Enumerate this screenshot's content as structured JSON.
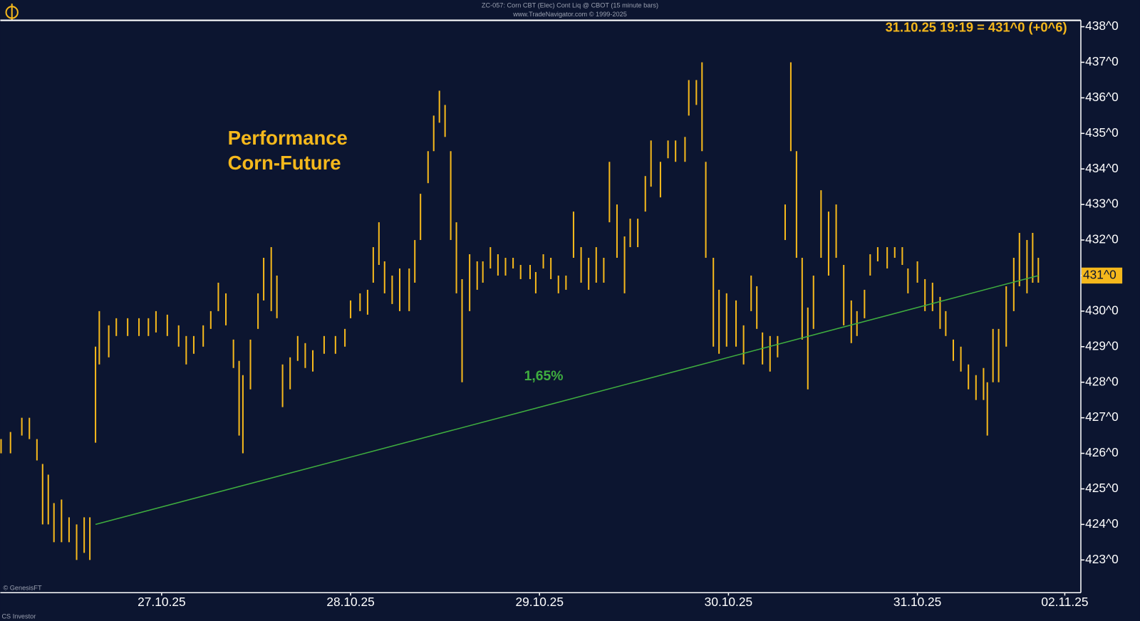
{
  "chart_data": {
    "type": "hlbar",
    "header": "ZC-057: Corn CBT (Elec) Cont Liq @ CBOT  (15 minute bars)",
    "subheader": "www.TradeNavigator.com © 1999-2025",
    "title": "Performance",
    "subtitle": "Corn-Future",
    "quote": "31.10.25 19:19 = 431^0 (+0^6)",
    "credit": "© GenesisFT",
    "footer": "CS Investor",
    "color": "#f5b81c",
    "x": [
      -0.85,
      -0.8,
      -0.74,
      -0.7,
      -0.66,
      -0.63,
      -0.6,
      -0.57,
      -0.53,
      -0.49,
      -0.45,
      -0.41,
      -0.38,
      -0.35,
      -0.33,
      -0.28,
      -0.24,
      -0.18,
      -0.12,
      -0.07,
      -0.03,
      0.03,
      0.09,
      0.13,
      0.17,
      0.22,
      0.26,
      0.3,
      0.34,
      0.38,
      0.41,
      0.43,
      0.47,
      0.51,
      0.54,
      0.58,
      0.61,
      0.64,
      0.68,
      0.72,
      0.76,
      0.8,
      0.86,
      0.92,
      0.97,
      1.0,
      1.05,
      1.09,
      1.12,
      1.15,
      1.18,
      1.22,
      1.26,
      1.31,
      1.34,
      1.37,
      1.41,
      1.44,
      1.47,
      1.5,
      1.53,
      1.56,
      1.59,
      1.63,
      1.67,
      1.7,
      1.74,
      1.78,
      1.82,
      1.86,
      1.9,
      1.95,
      1.98,
      2.02,
      2.06,
      2.1,
      2.14,
      2.18,
      2.22,
      2.26,
      2.3,
      2.34,
      2.37,
      2.41,
      2.45,
      2.48,
      2.52,
      2.56,
      2.59,
      2.64,
      2.68,
      2.72,
      2.77,
      2.79,
      2.83,
      2.86,
      2.88,
      2.92,
      2.95,
      2.99,
      3.04,
      3.08,
      3.12,
      3.15,
      3.18,
      3.22,
      3.26,
      3.3,
      3.33,
      3.36,
      3.39,
      3.42,
      3.45,
      3.49,
      3.53,
      3.57,
      3.61,
      3.65,
      3.68,
      3.72,
      3.75,
      3.79,
      3.84,
      3.88,
      3.92,
      3.95,
      4.0,
      4.04,
      4.08,
      4.12,
      4.15,
      4.19,
      4.23,
      4.27,
      4.31,
      4.35,
      4.37,
      4.4,
      4.43,
      4.47,
      4.51,
      4.54,
      4.58,
      4.61,
      4.64
    ],
    "high": [
      426.4,
      426.6,
      427.0,
      427.0,
      426.4,
      425.7,
      425.4,
      424.6,
      424.7,
      424.2,
      424.0,
      424.2,
      424.2,
      429.0,
      430.0,
      429.6,
      429.8,
      429.8,
      429.8,
      429.8,
      430.0,
      429.9,
      429.6,
      429.3,
      429.3,
      429.6,
      430.0,
      430.8,
      430.5,
      429.2,
      428.6,
      428.2,
      429.2,
      430.5,
      431.5,
      431.8,
      431.0,
      428.5,
      428.7,
      429.3,
      429.1,
      428.9,
      429.3,
      429.3,
      429.5,
      430.3,
      430.5,
      430.6,
      431.8,
      432.5,
      431.4,
      431.0,
      431.2,
      431.2,
      432.0,
      433.3,
      434.5,
      435.5,
      436.2,
      435.8,
      434.5,
      432.5,
      430.9,
      431.6,
      431.4,
      431.4,
      431.8,
      431.6,
      431.5,
      431.5,
      431.3,
      431.3,
      431.1,
      431.6,
      431.5,
      431.0,
      431.0,
      432.8,
      431.8,
      431.5,
      431.8,
      431.5,
      434.2,
      433.0,
      432.1,
      432.6,
      432.6,
      433.8,
      434.8,
      434.2,
      434.8,
      434.8,
      434.9,
      436.5,
      436.5,
      437.0,
      434.2,
      431.5,
      430.6,
      430.5,
      430.3,
      429.6,
      431.0,
      430.7,
      429.4,
      429.3,
      429.3,
      433.0,
      437.0,
      434.5,
      431.5,
      430.1,
      431.0,
      433.4,
      432.8,
      433.0,
      431.3,
      430.3,
      430.0,
      430.6,
      431.6,
      431.8,
      431.8,
      431.8,
      431.8,
      431.2,
      431.4,
      430.9,
      430.8,
      430.4,
      430.0,
      429.2,
      429.0,
      428.5,
      428.2,
      428.4,
      428.0,
      429.5,
      429.5,
      430.7,
      431.5,
      432.2,
      432.0,
      432.2,
      431.5
    ],
    "low": [
      426.0,
      426.0,
      426.5,
      426.4,
      425.8,
      424.0,
      424.0,
      423.5,
      423.5,
      423.5,
      423.0,
      423.2,
      423.0,
      426.3,
      428.5,
      428.7,
      429.3,
      429.3,
      429.3,
      429.3,
      429.4,
      429.3,
      429.0,
      428.5,
      428.8,
      429.0,
      429.5,
      430.0,
      429.6,
      428.4,
      426.5,
      426.0,
      427.8,
      429.5,
      430.3,
      430.0,
      429.8,
      427.3,
      427.8,
      428.6,
      428.4,
      428.3,
      428.8,
      428.8,
      429.0,
      429.8,
      430.0,
      429.9,
      430.8,
      431.3,
      430.5,
      430.2,
      430.0,
      430.0,
      430.8,
      432.0,
      433.6,
      434.5,
      435.3,
      434.9,
      432.0,
      430.5,
      428.0,
      430.0,
      430.6,
      430.8,
      431.2,
      431.0,
      431.0,
      431.2,
      430.9,
      430.9,
      430.5,
      431.2,
      430.9,
      430.5,
      430.6,
      431.5,
      430.8,
      430.6,
      430.8,
      430.8,
      432.5,
      431.5,
      430.5,
      431.8,
      431.8,
      432.8,
      433.5,
      433.2,
      434.3,
      434.2,
      434.2,
      435.5,
      435.8,
      434.5,
      431.5,
      429.0,
      428.8,
      429.0,
      429.0,
      428.5,
      430.0,
      429.5,
      428.5,
      428.3,
      428.7,
      432.0,
      434.5,
      431.5,
      429.2,
      427.8,
      429.5,
      431.5,
      431.0,
      431.5,
      429.6,
      429.1,
      429.3,
      429.8,
      431.0,
      431.4,
      431.2,
      431.5,
      431.3,
      430.5,
      430.8,
      430.0,
      430.0,
      429.5,
      429.3,
      428.6,
      428.3,
      427.8,
      427.5,
      427.5,
      426.5,
      428.0,
      428.0,
      429.0,
      430.0,
      430.7,
      430.5,
      430.8,
      430.8
    ],
    "trendline": {
      "x": [
        -0.35,
        4.64
      ],
      "y": [
        424.0,
        431.0
      ],
      "color": "#3fae3f",
      "label": "1,65%"
    },
    "last": {
      "value": 431,
      "label": "431^0"
    },
    "xlim": [
      -0.854,
      4.865
    ],
    "ylim": [
      422.08,
      438.18
    ],
    "xticks": [
      {
        "value": 0,
        "label": "27.10.25"
      },
      {
        "value": 1,
        "label": "28.10.25"
      },
      {
        "value": 2,
        "label": "29.10.25"
      },
      {
        "value": 3,
        "label": "30.10.25"
      },
      {
        "value": 4,
        "label": "31.10.25"
      },
      {
        "value": 4.78,
        "label": "02.11.25"
      }
    ],
    "yticks": [
      {
        "value": 423,
        "label": "423^0"
      },
      {
        "value": 424,
        "label": "424^0"
      },
      {
        "value": 425,
        "label": "425^0"
      },
      {
        "value": 426,
        "label": "426^0"
      },
      {
        "value": 427,
        "label": "427^0"
      },
      {
        "value": 428,
        "label": "428^0"
      },
      {
        "value": 429,
        "label": "429^0"
      },
      {
        "value": 430,
        "label": "430^0"
      },
      {
        "value": 431,
        "label": "431^0"
      },
      {
        "value": 432,
        "label": "432^0"
      },
      {
        "value": 433,
        "label": "433^0"
      },
      {
        "value": 434,
        "label": "434^0"
      },
      {
        "value": 435,
        "label": "435^0"
      },
      {
        "value": 436,
        "label": "436^0"
      },
      {
        "value": 437,
        "label": "437^0"
      },
      {
        "value": 438,
        "label": "438^0"
      }
    ]
  }
}
